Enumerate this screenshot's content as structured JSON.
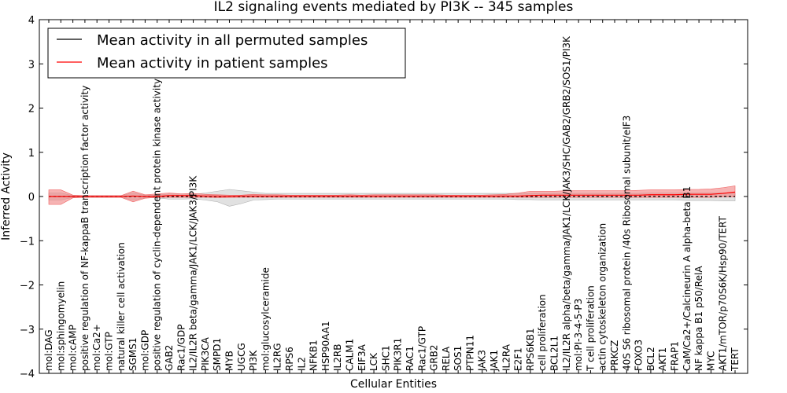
{
  "chart_data": {
    "type": "line",
    "title": "IL2 signaling events mediated by PI3K -- 345 samples",
    "xlabel": "Cellular Entities",
    "ylabel": "Inferred Activity",
    "ylim": [
      -4,
      4
    ],
    "yticks": [
      "−4",
      "−3",
      "−2",
      "−1",
      "0",
      "1",
      "2",
      "3",
      "4"
    ],
    "legend_position": "upper-left",
    "grid": false,
    "colors": {
      "permuted": "#000000",
      "patient": "#ff0000",
      "patient_band": "#f08080",
      "permuted_band": "#c8c8c8"
    },
    "categories": [
      "mol:DAG",
      "mol:sphingomyelin",
      "mol:cAMP",
      "positive regulation of NF-kappaB transcription factor activity",
      "mol:Ca2+",
      "mol:GTP",
      "natural killer cell activation",
      "SGMS1",
      "mol:GDP",
      "positive regulation of cyclin-dependent protein kinase activity",
      "GAB2",
      "Rac1/GDP",
      "IL2/IL2R beta/gamma/JAK1/LCK/JAK3/PI3K",
      "PIK3CA",
      "SMPD1",
      "MYB",
      "UGCG",
      "PI3K",
      "mol:glucosylceramide",
      "IL2RG",
      "RPS6",
      "IL2",
      "NFKB1",
      "HSP90AA1",
      "IL2RB",
      "CALM1",
      "EIF3A",
      "LCK",
      "SHC1",
      "PIK3R1",
      "RAC1",
      "Rac1/GTP",
      "GRB2",
      "RELA",
      "SOS1",
      "PTPN11",
      "JAK3",
      "JAK1",
      "IL2RA",
      "E2F1",
      "RPS6KB1",
      "cell proliferation",
      "BCL2L1",
      "IL2/IL2R alpha/beta/gamma/JAK1/LCK/JAK3/SHC/GAB2/GRB2/SOS1/PI3K",
      "mol:PI-3-4-5-P3",
      "T cell proliferation",
      "actin cytoskeleton organization",
      "PRKCZ",
      "40S S6 ribosomal protein /40s Ribosomal subunit/eIF3",
      "FOXO3",
      "BCL2",
      "AKT1",
      "FRAP1",
      "CaM/Ca2+/Calcineurin A alpha-beta B1",
      "NF kappa B1 p50/RelA",
      "MYC",
      "AKT1/mTOR/p70S6K/Hsp90/TERT",
      "TERT"
    ],
    "series": [
      {
        "name": "Mean activity in all permuted samples",
        "values": [
          0,
          0,
          0,
          0,
          0,
          0,
          0,
          0,
          0,
          0,
          0,
          0,
          0,
          0,
          0,
          0,
          0,
          0,
          0,
          0,
          0,
          0,
          0,
          0,
          0,
          0,
          0,
          0,
          0,
          0,
          0,
          0,
          0,
          0,
          0,
          0,
          0,
          0,
          0,
          0,
          0,
          0,
          0,
          0,
          0,
          0,
          0,
          0,
          0,
          0,
          0,
          0,
          0,
          0,
          0,
          0,
          0,
          0
        ],
        "band": [
          [
            -0.08,
            0.08
          ],
          [
            -0.08,
            0.08
          ],
          [
            -0.02,
            0.02
          ],
          [
            -0.02,
            0.02
          ],
          [
            -0.02,
            0.02
          ],
          [
            -0.02,
            0.02
          ],
          [
            -0.02,
            0.02
          ],
          [
            -0.08,
            0.08
          ],
          [
            -0.03,
            0.03
          ],
          [
            -0.03,
            0.03
          ],
          [
            -0.06,
            0.06
          ],
          [
            -0.06,
            0.06
          ],
          [
            -0.05,
            0.05
          ],
          [
            -0.08,
            0.08
          ],
          [
            -0.12,
            0.12
          ],
          [
            -0.22,
            0.16
          ],
          [
            -0.16,
            0.13
          ],
          [
            -0.08,
            0.1
          ],
          [
            -0.07,
            0.07
          ],
          [
            -0.06,
            0.07
          ],
          [
            -0.06,
            0.07
          ],
          [
            -0.06,
            0.07
          ],
          [
            -0.06,
            0.07
          ],
          [
            -0.06,
            0.07
          ],
          [
            -0.06,
            0.07
          ],
          [
            -0.06,
            0.07
          ],
          [
            -0.06,
            0.07
          ],
          [
            -0.06,
            0.07
          ],
          [
            -0.06,
            0.07
          ],
          [
            -0.06,
            0.07
          ],
          [
            -0.06,
            0.07
          ],
          [
            -0.06,
            0.07
          ],
          [
            -0.06,
            0.07
          ],
          [
            -0.06,
            0.07
          ],
          [
            -0.06,
            0.07
          ],
          [
            -0.06,
            0.07
          ],
          [
            -0.06,
            0.07
          ],
          [
            -0.06,
            0.07
          ],
          [
            -0.06,
            0.07
          ],
          [
            -0.07,
            0.07
          ],
          [
            -0.07,
            0.07
          ],
          [
            -0.08,
            0.07
          ],
          [
            -0.08,
            0.07
          ],
          [
            -0.08,
            0.07
          ],
          [
            -0.08,
            0.07
          ],
          [
            -0.08,
            0.07
          ],
          [
            -0.08,
            0.07
          ],
          [
            -0.08,
            0.07
          ],
          [
            -0.08,
            0.07
          ],
          [
            -0.08,
            0.07
          ],
          [
            -0.08,
            0.08
          ],
          [
            -0.08,
            0.08
          ],
          [
            -0.08,
            0.08
          ],
          [
            -0.09,
            0.08
          ],
          [
            -0.09,
            0.08
          ],
          [
            -0.09,
            0.08
          ],
          [
            -0.1,
            0.08
          ],
          [
            -0.1,
            0.08
          ]
        ]
      },
      {
        "name": "Mean activity in patient samples",
        "values": [
          0.0,
          0.0,
          0.0,
          0.0,
          0.0,
          0.0,
          0.0,
          0.01,
          0.0,
          0.0,
          0.02,
          0.02,
          0.02,
          0.01,
          0.01,
          0.0,
          0.01,
          0.01,
          0.01,
          0.01,
          0.01,
          0.01,
          0.01,
          0.01,
          0.01,
          0.01,
          0.01,
          0.01,
          0.01,
          0.01,
          0.01,
          0.01,
          0.01,
          0.01,
          0.01,
          0.01,
          0.01,
          0.01,
          0.01,
          0.01,
          0.02,
          0.03,
          0.03,
          0.03,
          0.03,
          0.03,
          0.03,
          0.03,
          0.03,
          0.03,
          0.04,
          0.04,
          0.04,
          0.05,
          0.05,
          0.05,
          0.07,
          0.1
        ],
        "band": [
          [
            -0.18,
            0.15
          ],
          [
            -0.18,
            0.15
          ],
          [
            -0.03,
            0.03
          ],
          [
            -0.02,
            0.02
          ],
          [
            -0.02,
            0.02
          ],
          [
            -0.02,
            0.02
          ],
          [
            -0.02,
            0.02
          ],
          [
            -0.12,
            0.12
          ],
          [
            -0.04,
            0.04
          ],
          [
            -0.02,
            0.06
          ],
          [
            -0.02,
            0.08
          ],
          [
            -0.02,
            0.06
          ],
          [
            -0.02,
            0.07
          ],
          [
            -0.02,
            0.05
          ],
          [
            -0.03,
            0.04
          ],
          [
            -0.02,
            0.03
          ],
          [
            -0.02,
            0.03
          ],
          [
            -0.02,
            0.05
          ],
          [
            -0.02,
            0.04
          ],
          [
            -0.02,
            0.04
          ],
          [
            -0.02,
            0.03
          ],
          [
            -0.02,
            0.03
          ],
          [
            -0.02,
            0.03
          ],
          [
            -0.02,
            0.03
          ],
          [
            -0.02,
            0.03
          ],
          [
            -0.02,
            0.04
          ],
          [
            -0.02,
            0.03
          ],
          [
            -0.02,
            0.04
          ],
          [
            -0.02,
            0.04
          ],
          [
            -0.02,
            0.04
          ],
          [
            -0.02,
            0.04
          ],
          [
            -0.02,
            0.04
          ],
          [
            -0.02,
            0.04
          ],
          [
            -0.02,
            0.03
          ],
          [
            -0.02,
            0.03
          ],
          [
            -0.02,
            0.03
          ],
          [
            -0.02,
            0.03
          ],
          [
            -0.02,
            0.04
          ],
          [
            -0.02,
            0.05
          ],
          [
            -0.02,
            0.08
          ],
          [
            -0.02,
            0.12
          ],
          [
            -0.02,
            0.12
          ],
          [
            -0.02,
            0.12
          ],
          [
            -0.02,
            0.13
          ],
          [
            -0.02,
            0.13
          ],
          [
            -0.02,
            0.13
          ],
          [
            -0.02,
            0.13
          ],
          [
            -0.02,
            0.13
          ],
          [
            -0.02,
            0.13
          ],
          [
            -0.02,
            0.14
          ],
          [
            -0.02,
            0.15
          ],
          [
            -0.02,
            0.15
          ],
          [
            -0.02,
            0.15
          ],
          [
            -0.02,
            0.16
          ],
          [
            -0.02,
            0.16
          ],
          [
            -0.02,
            0.17
          ],
          [
            -0.01,
            0.2
          ],
          [
            -0.01,
            0.24
          ]
        ]
      }
    ]
  }
}
